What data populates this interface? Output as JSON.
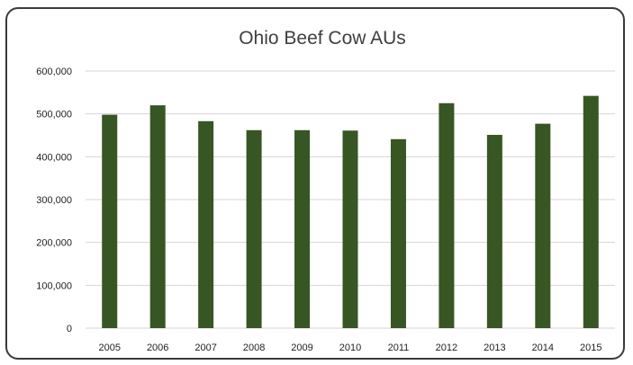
{
  "chart_data": {
    "type": "bar",
    "title": "Ohio Beef Cow AUs",
    "xlabel": "",
    "ylabel": "",
    "categories": [
      "2005",
      "2006",
      "2007",
      "2008",
      "2009",
      "2010",
      "2011",
      "2012",
      "2013",
      "2014",
      "2015"
    ],
    "values": [
      498000,
      520000,
      483000,
      462000,
      462000,
      461000,
      441000,
      525000,
      451000,
      477000,
      542000
    ],
    "ylim": [
      0,
      600000
    ],
    "yticks": [
      0,
      100000,
      200000,
      300000,
      400000,
      500000,
      600000
    ],
    "ytick_labels": [
      "0",
      "100,000",
      "200,000",
      "300,000",
      "400,000",
      "500,000",
      "600,000"
    ],
    "grid": true,
    "legend": "none",
    "bar_color": "#375623"
  }
}
